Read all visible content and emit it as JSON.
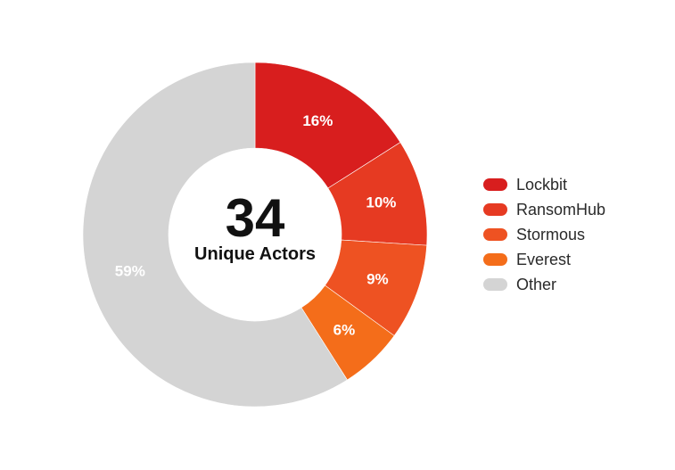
{
  "chart_data": {
    "type": "pie",
    "donut": true,
    "categories": [
      "Lockbit",
      "RansomHub",
      "Stormous",
      "Everest",
      "Other"
    ],
    "values": [
      16,
      10,
      9,
      6,
      59
    ],
    "value_labels": [
      "16%",
      "10%",
      "9%",
      "6%",
      "59%"
    ],
    "colors": [
      "#d81e1e",
      "#e63a22",
      "#ee5222",
      "#f46d1a",
      "#d4d4d4"
    ],
    "center_value": "34",
    "center_label": "Unique Actors",
    "legend": "right"
  }
}
